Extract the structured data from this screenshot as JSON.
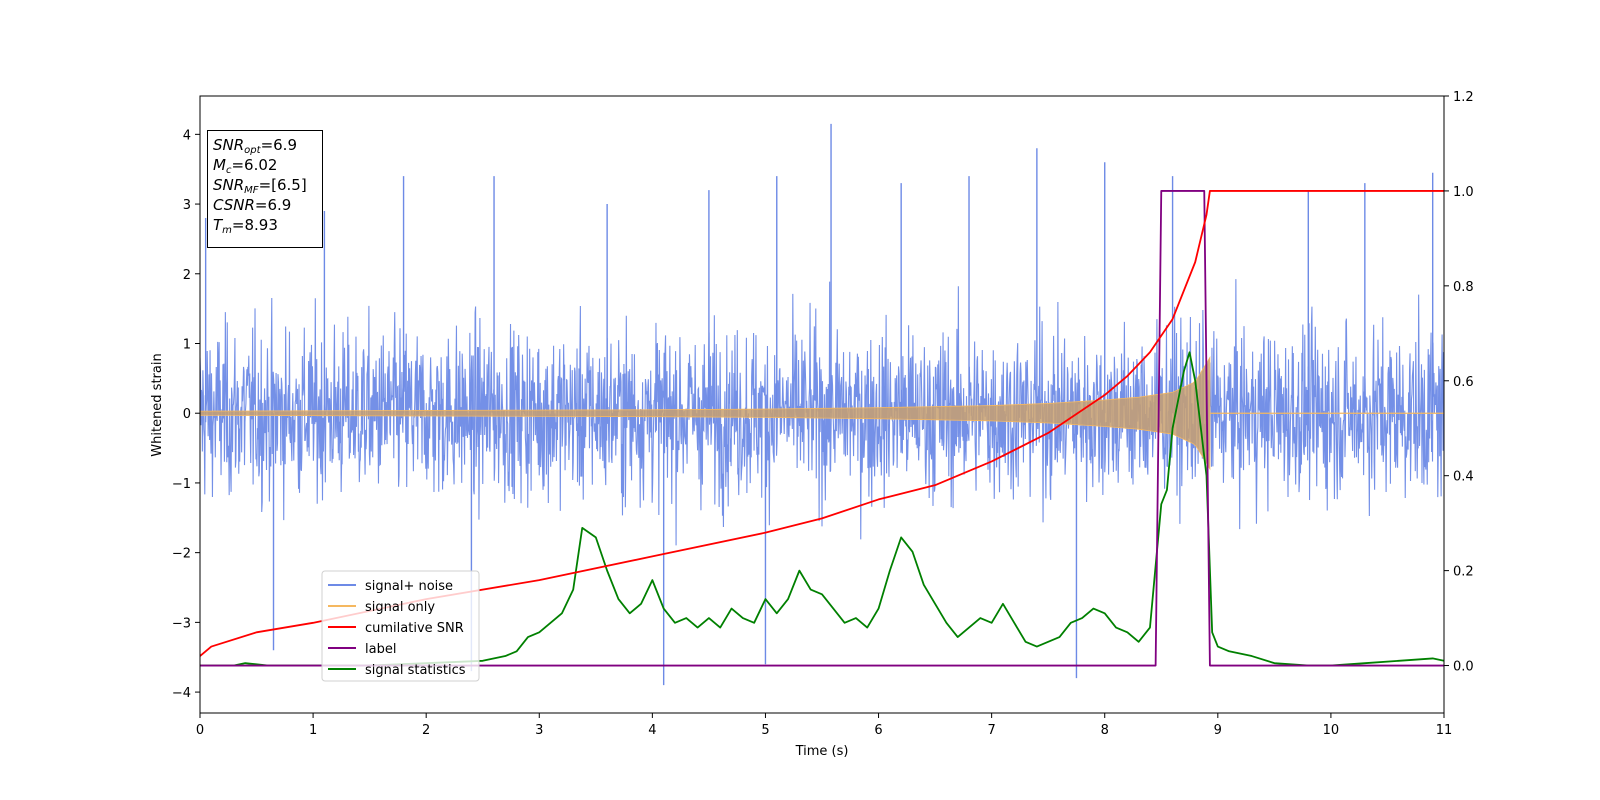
{
  "chart_data": {
    "type": "line",
    "title": "",
    "xlabel": "Time (s)",
    "ylabel": "Whitened strain",
    "xlim": [
      0,
      11
    ],
    "ylim_left": [
      -4.3,
      4.55
    ],
    "ylim_right": [
      -0.1,
      1.2
    ],
    "x_ticks": [
      0,
      1,
      2,
      3,
      4,
      5,
      6,
      7,
      8,
      9,
      10,
      11
    ],
    "y_ticks_left": [
      -4,
      -3,
      -2,
      -1,
      0,
      1,
      2,
      3,
      4
    ],
    "y_ticks_right": [
      0.0,
      0.2,
      0.4,
      0.6,
      0.8,
      1.0,
      1.2
    ],
    "grid": false,
    "legend_position": "lower-left",
    "series": [
      {
        "name": "signal+ noise",
        "axis": "left",
        "color": "#6d8ae6",
        "style": "dense noisy waveform, roughly ±2 with excursions to about ±3.5",
        "noise_envelope": 2.2,
        "peak_values": [
          {
            "x": 0.05,
            "y": 2.8
          },
          {
            "x": 0.65,
            "y": -3.4
          },
          {
            "x": 1.1,
            "y": 2.9
          },
          {
            "x": 1.8,
            "y": 3.4
          },
          {
            "x": 2.4,
            "y": -3.7
          },
          {
            "x": 2.6,
            "y": 3.4
          },
          {
            "x": 3.6,
            "y": 3.0
          },
          {
            "x": 4.1,
            "y": -3.9
          },
          {
            "x": 4.5,
            "y": 3.2
          },
          {
            "x": 5.0,
            "y": -3.6
          },
          {
            "x": 5.1,
            "y": 3.4
          },
          {
            "x": 5.58,
            "y": 4.15
          },
          {
            "x": 6.2,
            "y": 3.3
          },
          {
            "x": 6.8,
            "y": 3.4
          },
          {
            "x": 7.4,
            "y": 3.8
          },
          {
            "x": 7.75,
            "y": -3.8
          },
          {
            "x": 8.0,
            "y": 3.6
          },
          {
            "x": 8.6,
            "y": 3.4
          },
          {
            "x": 9.8,
            "y": 3.2
          },
          {
            "x": 10.3,
            "y": 3.3
          },
          {
            "x": 10.9,
            "y": 3.45
          }
        ]
      },
      {
        "name": "signal only",
        "axis": "left",
        "color": "#f5b860",
        "style": "chirp with growing amplitude ending at merger time",
        "merger_time": 8.93,
        "x": [
          0,
          2,
          4,
          5,
          6,
          7,
          7.5,
          8,
          8.3,
          8.6,
          8.8,
          8.93
        ],
        "amplitude": [
          0.03,
          0.04,
          0.05,
          0.06,
          0.08,
          0.11,
          0.14,
          0.19,
          0.23,
          0.3,
          0.45,
          0.8
        ]
      },
      {
        "name": "cumilative SNR",
        "axis": "right",
        "color": "#ff0000",
        "x": [
          0,
          0.1,
          0.5,
          1,
          2,
          3,
          4,
          5,
          5.5,
          6,
          6.5,
          7,
          7.5,
          8,
          8.2,
          8.4,
          8.6,
          8.8,
          8.9,
          8.93,
          9.0,
          11
        ],
        "y": [
          0.02,
          0.04,
          0.07,
          0.09,
          0.14,
          0.18,
          0.23,
          0.28,
          0.31,
          0.35,
          0.38,
          0.43,
          0.49,
          0.57,
          0.61,
          0.66,
          0.73,
          0.85,
          0.95,
          1.0,
          1.0,
          1.0
        ]
      },
      {
        "name": "label",
        "axis": "right",
        "color": "#800080",
        "x": [
          0,
          8.45,
          8.5,
          8.88,
          8.93,
          11
        ],
        "y": [
          0,
          0,
          1,
          1,
          0,
          0
        ]
      },
      {
        "name": "signal statistics",
        "axis": "right",
        "color": "#008000",
        "x": [
          0,
          0.3,
          0.4,
          0.6,
          0.9,
          1.5,
          2.0,
          2.5,
          2.7,
          2.8,
          2.9,
          3.0,
          3.1,
          3.2,
          3.3,
          3.38,
          3.5,
          3.6,
          3.7,
          3.8,
          3.9,
          4.0,
          4.1,
          4.2,
          4.3,
          4.4,
          4.5,
          4.6,
          4.7,
          4.8,
          4.9,
          5.0,
          5.1,
          5.2,
          5.3,
          5.4,
          5.5,
          5.6,
          5.7,
          5.8,
          5.9,
          6.0,
          6.1,
          6.2,
          6.3,
          6.4,
          6.5,
          6.6,
          6.7,
          6.8,
          6.9,
          7.0,
          7.1,
          7.2,
          7.3,
          7.4,
          7.5,
          7.6,
          7.7,
          7.8,
          7.9,
          8.0,
          8.1,
          8.2,
          8.3,
          8.4,
          8.5,
          8.55,
          8.6,
          8.7,
          8.75,
          8.8,
          8.9,
          8.95,
          9.0,
          9.1,
          9.3,
          9.5,
          9.8,
          10.0,
          10.3,
          10.6,
          10.9,
          11.0
        ],
        "y": [
          0.0,
          0.0,
          0.005,
          0.0,
          0.0,
          0.0,
          0.005,
          0.01,
          0.02,
          0.03,
          0.06,
          0.07,
          0.09,
          0.11,
          0.16,
          0.29,
          0.27,
          0.2,
          0.14,
          0.11,
          0.13,
          0.18,
          0.12,
          0.09,
          0.1,
          0.08,
          0.1,
          0.08,
          0.12,
          0.1,
          0.09,
          0.14,
          0.11,
          0.14,
          0.2,
          0.16,
          0.15,
          0.12,
          0.09,
          0.1,
          0.08,
          0.12,
          0.2,
          0.27,
          0.24,
          0.17,
          0.13,
          0.09,
          0.06,
          0.08,
          0.1,
          0.09,
          0.13,
          0.09,
          0.05,
          0.04,
          0.05,
          0.06,
          0.09,
          0.1,
          0.12,
          0.11,
          0.08,
          0.07,
          0.05,
          0.08,
          0.34,
          0.37,
          0.5,
          0.62,
          0.66,
          0.6,
          0.4,
          0.07,
          0.04,
          0.03,
          0.02,
          0.005,
          0.0,
          0.0,
          0.005,
          0.01,
          0.015,
          0.01
        ]
      }
    ],
    "legend": [
      "signal+ noise",
      "signal only",
      "cumilative SNR",
      "label",
      "signal statistics"
    ]
  },
  "info_box": {
    "snr_opt": {
      "label": "SNR",
      "sub": "opt",
      "value": "=6.9"
    },
    "mc": {
      "label": "M",
      "sub": "c",
      "value": "=6.02"
    },
    "snr_mf": {
      "label": "SNR",
      "sub": "MF",
      "value": "=[6.5]"
    },
    "csnr": {
      "label": "CSNR",
      "value": "=6.9"
    },
    "tm": {
      "label": "T",
      "sub": "m",
      "value": "=8.93"
    }
  }
}
